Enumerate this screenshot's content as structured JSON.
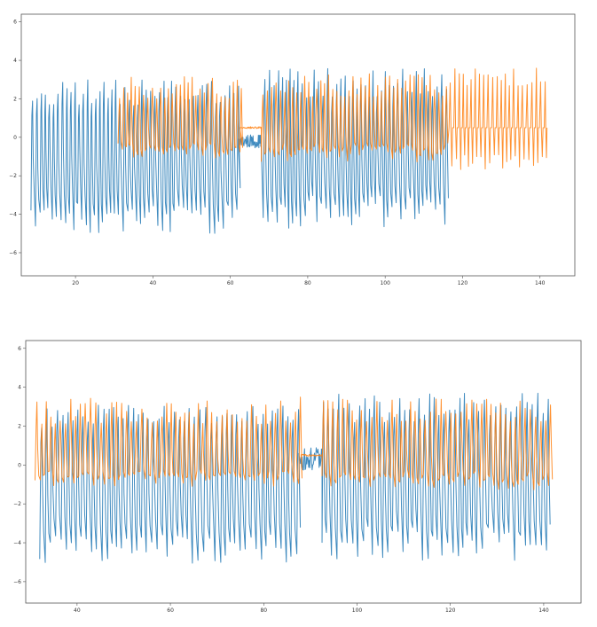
{
  "colors": {
    "blue": "#1f77b4",
    "orange": "#ff7f0e"
  },
  "chart_data": [
    {
      "type": "line",
      "xlim": [
        6,
        149
      ],
      "ylim": [
        -7.2,
        6.4
      ],
      "xticks": [
        20,
        40,
        60,
        80,
        100,
        120,
        140
      ],
      "yticks": [
        -6,
        -4,
        -2,
        0,
        2,
        4,
        6
      ],
      "grid": false,
      "series": [
        {
          "color_key": "blue",
          "segments": [
            {
              "x_start": 8.5,
              "x_end": 62.0,
              "cycle": 1.1,
              "low_mean": -4.2,
              "low_var": 0.8,
              "high_mean": 2.3,
              "high_var": 0.7
            },
            {
              "x_start": 62.0,
              "x_end": 68.0,
              "flat_level": -0.2,
              "noise": 0.35
            },
            {
              "x_start": 68.5,
              "x_end": 116.5,
              "cycle": 1.1,
              "low_mean": -3.9,
              "low_var": 0.9,
              "high_mean": 2.8,
              "high_var": 0.8
            }
          ],
          "min": -6.5,
          "max": 5.6
        },
        {
          "color_key": "orange",
          "segments": [
            {
              "x_start": 31.0,
              "x_end": 62.5,
              "cycle": 1.05,
              "low_mean": -0.7,
              "low_var": 0.4,
              "high_mean": 2.6,
              "high_var": 0.6
            },
            {
              "x_start": 62.5,
              "x_end": 68.0,
              "flat_level": 0.5,
              "noise": 0.05
            },
            {
              "x_start": 68.0,
              "x_end": 116.5,
              "cycle": 1.05,
              "low_mean": -0.8,
              "low_var": 0.5,
              "high_mean": 2.7,
              "high_var": 0.6
            },
            {
              "x_start": 116.5,
              "x_end": 142.0,
              "cycle": 1.1,
              "low_mean": -1.3,
              "low_var": 0.4,
              "high_mean": 3.1,
              "high_var": 0.5,
              "baseline": 0.5
            }
          ],
          "max": 5.1
        }
      ]
    },
    {
      "type": "line",
      "xlim": [
        29,
        148
      ],
      "ylim": [
        -7.1,
        6.4
      ],
      "xticks": [
        40,
        60,
        80,
        100,
        120,
        140
      ],
      "yticks": [
        -6,
        -4,
        -2,
        0,
        2,
        4,
        6
      ],
      "grid": false,
      "series": [
        {
          "color_key": "blue",
          "segments": [
            {
              "x_start": 32.0,
              "x_end": 87.5,
              "cycle": 1.1,
              "low_mean": -4.3,
              "low_var": 0.8,
              "high_mean": 2.5,
              "high_var": 0.6
            },
            {
              "x_start": 87.5,
              "x_end": 92.5,
              "flat_level": 0.3,
              "noise": 0.6
            },
            {
              "x_start": 92.5,
              "x_end": 141.5,
              "cycle": 1.1,
              "low_mean": -4.0,
              "low_var": 0.9,
              "high_mean": 2.9,
              "high_var": 0.8
            }
          ],
          "min": -6.5,
          "max": 5.6
        },
        {
          "color_key": "orange",
          "segments": [
            {
              "x_start": 31.0,
              "x_end": 88.0,
              "cycle": 1.05,
              "low_mean": -0.7,
              "low_var": 0.4,
              "high_mean": 2.8,
              "high_var": 0.7
            },
            {
              "x_start": 88.0,
              "x_end": 92.5,
              "flat_level": 0.5,
              "noise": 0.05
            },
            {
              "x_start": 92.5,
              "x_end": 142.0,
              "cycle": 1.05,
              "low_mean": -0.8,
              "low_var": 0.5,
              "high_mean": 2.8,
              "high_var": 0.6
            }
          ],
          "max": 5.1
        }
      ]
    }
  ]
}
